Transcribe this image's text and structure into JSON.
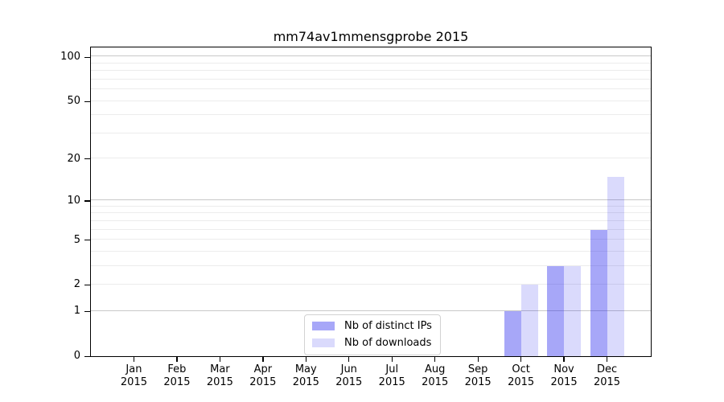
{
  "chart_data": {
    "type": "bar",
    "title": "mm74av1mmensgprobe 2015",
    "categories": [
      "Jan",
      "Feb",
      "Mar",
      "Apr",
      "May",
      "Jun",
      "Jul",
      "Aug",
      "Sep",
      "Oct",
      "Nov",
      "Dec"
    ],
    "category_year": "2015",
    "series": [
      {
        "name": "Nb of distinct IPs",
        "color_hex": "#a7a7f8",
        "color_rgba": "rgba(10,10,235,0.36)",
        "values": [
          0,
          0,
          0,
          0,
          0,
          0,
          0,
          0,
          0,
          1,
          3,
          6
        ]
      },
      {
        "name": "Nb of downloads",
        "color_hex": "#dbdbfb",
        "color_rgba": "rgba(10,10,235,0.15)",
        "values": [
          0,
          0,
          0,
          0,
          0,
          0,
          0,
          0,
          0,
          2,
          3,
          15
        ]
      }
    ],
    "xlabel": "",
    "ylabel": "",
    "yscale": "log1p",
    "ylim": [
      0,
      115
    ],
    "yticks": [
      0,
      1,
      2,
      5,
      10,
      20,
      50,
      100
    ],
    "gridlines": {
      "major": [
        1,
        10,
        100
      ],
      "minor": [
        2,
        3,
        4,
        5,
        6,
        7,
        8,
        9,
        20,
        30,
        40,
        50,
        60,
        70,
        80,
        90
      ],
      "major_color": "#c8c8c8",
      "minor_color": "#ececec"
    },
    "grid": "on",
    "legend_position": "bottom-center-inside",
    "axis_color": "#000000",
    "background_color": "#ffffff"
  }
}
